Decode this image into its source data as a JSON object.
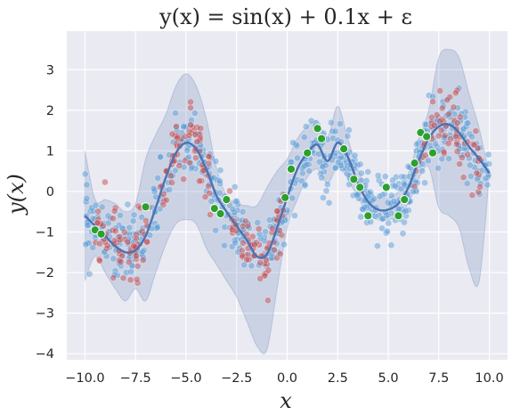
{
  "chart_data": {
    "type": "scatter",
    "title": "y(x) = sin(x) + 0.1x + ε",
    "xlabel": "x",
    "ylabel": "y(x)",
    "xlim": [
      -10.9,
      10.9
    ],
    "ylim": [
      -4.15,
      3.95
    ],
    "x_ticks": [
      -10,
      -7.5,
      -5,
      -2.5,
      0,
      2.5,
      5,
      7.5,
      10
    ],
    "x_tick_labels": [
      "−10.0",
      "−7.5",
      "−5.0",
      "−2.5",
      "0.0",
      "2.5",
      "5.0",
      "7.5",
      "10.0"
    ],
    "y_ticks": [
      -4,
      -3,
      -2,
      -1,
      0,
      1,
      2,
      3
    ],
    "y_tick_labels": [
      "−4",
      "−3",
      "−2",
      "−1",
      "0",
      "1",
      "2",
      "3"
    ],
    "grid": true,
    "colors": {
      "background": "#eaeaf2",
      "grid": "#ffffff",
      "blue_points": "#5b9bd5",
      "red_points": "#c44e52",
      "green_points": "#2ca02c",
      "mean_line": "#4c72b0",
      "band_fill": "#4c72b0"
    },
    "mean_curve": {
      "x": [
        -10,
        -9.5,
        -9,
        -8.5,
        -8,
        -7.5,
        -7,
        -6.5,
        -6,
        -5.5,
        -5,
        -4.5,
        -4,
        -3.5,
        -3,
        -2.5,
        -2,
        -1.5,
        -1,
        -0.5,
        0,
        0.5,
        1,
        1.5,
        2,
        2.5,
        3,
        3.5,
        4,
        4.5,
        5,
        5.5,
        6,
        6.5,
        7,
        7.5,
        8,
        8.5,
        9,
        9.5,
        10
      ],
      "y": [
        -0.6,
        -0.85,
        -1.1,
        -1.35,
        -1.5,
        -1.45,
        -1.1,
        -0.4,
        0.35,
        0.95,
        1.2,
        1.05,
        0.55,
        -0.1,
        -0.5,
        -0.85,
        -1.2,
        -1.6,
        -1.55,
        -0.9,
        -0.15,
        0.55,
        0.95,
        1.15,
        0.75,
        1.2,
        0.85,
        0.2,
        -0.25,
        -0.45,
        -0.45,
        -0.3,
        0.1,
        0.75,
        1.3,
        1.6,
        1.65,
        1.45,
        1.1,
        0.8,
        0.45
      ]
    },
    "band_upper": [
      1.0,
      -0.2,
      -0.2,
      -0.3,
      -0.5,
      -0.3,
      0.8,
      1.4,
      1.9,
      2.6,
      2.9,
      2.6,
      1.8,
      0.6,
      -0.1,
      -0.3,
      -0.35,
      -0.35,
      0.1,
      0.5,
      0.8,
      1.3,
      1.6,
      1.75,
      1.35,
      2.1,
      1.3,
      0.55,
      0.05,
      -0.15,
      -0.15,
      0.0,
      0.45,
      1.3,
      2.0,
      3.3,
      3.5,
      3.3,
      2.4,
      1.55,
      0.4
    ],
    "band_lower": [
      -2.2,
      -1.6,
      -2.0,
      -2.4,
      -2.7,
      -2.4,
      -2.7,
      -2.0,
      -1.3,
      -0.8,
      -0.7,
      -0.8,
      -1.4,
      -1.8,
      -2.2,
      -2.6,
      -3.2,
      -3.8,
      -3.9,
      -2.4,
      -0.9,
      -0.2,
      0.35,
      0.55,
      0.2,
      0.6,
      0.3,
      -0.15,
      -0.55,
      -0.7,
      -0.7,
      -0.6,
      -0.3,
      0.3,
      0.6,
      -0.4,
      -0.6,
      -0.9,
      -1.9,
      -2.2,
      0.45
    ],
    "series": [
      {
        "name": "blue",
        "n_points": 700,
        "x_range": [
          -10,
          10
        ]
      },
      {
        "name": "red",
        "n_points": 260,
        "x_intervals": [
          [
            -9.5,
            -6.8
          ],
          [
            -6.3,
            -3.8
          ],
          [
            -3.0,
            -0.1
          ],
          [
            6.3,
            9.6
          ]
        ]
      },
      {
        "name": "green",
        "x": [
          -9.5,
          -9.2,
          -7.0,
          -3.6,
          -3.3,
          -3.0,
          -0.1,
          0.2,
          1.0,
          1.5,
          1.7,
          2.8,
          3.3,
          3.6,
          4.0,
          4.9,
          5.5,
          5.8,
          6.3,
          6.6,
          6.9,
          7.2
        ],
        "y": [
          -0.95,
          -1.05,
          -0.38,
          -0.42,
          -0.55,
          -0.2,
          -0.15,
          0.55,
          0.95,
          1.55,
          1.3,
          1.05,
          0.3,
          0.1,
          -0.6,
          0.1,
          -0.6,
          -0.2,
          0.7,
          1.45,
          1.35,
          0.95
        ]
      }
    ]
  }
}
